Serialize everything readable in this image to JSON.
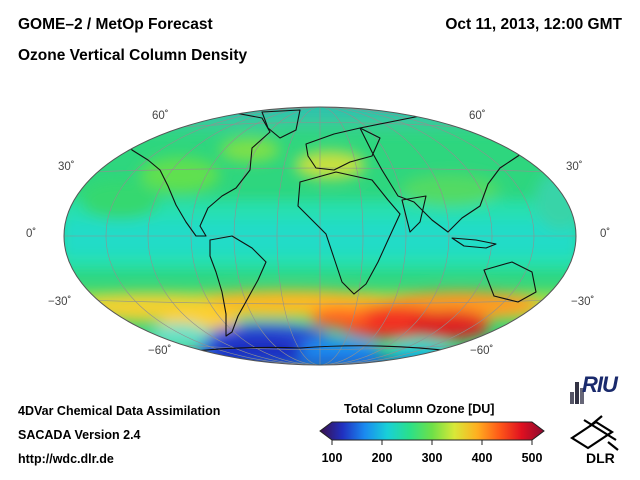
{
  "header": {
    "title_line1": "GOME–2 / MetOp Forecast",
    "title_line2": "Ozone Vertical Column Density",
    "datetime": "Oct 11, 2013, 12:00 GMT"
  },
  "map": {
    "projection": "Hammer-Aitoff",
    "lat_labels_left": [
      "60˚",
      "30˚",
      "0˚",
      "−30˚",
      "−60˚"
    ],
    "lat_labels_right": [
      "60˚",
      "30˚",
      "0˚",
      "−30˚",
      "−60˚"
    ]
  },
  "footer": {
    "line1": "4DVar Chemical Data Assimilation",
    "line2": "SACADA Version 2.4",
    "line3": "http://wdc.dlr.de"
  },
  "colorbar": {
    "title": "Total Column Ozone [DU]",
    "ticks": [
      "100",
      "200",
      "300",
      "400",
      "500"
    ],
    "stops": [
      "#3a0f4a",
      "#2030c0",
      "#1a8af0",
      "#18d0d8",
      "#2ae08a",
      "#6ee048",
      "#d8e838",
      "#ffb020",
      "#ff5a18",
      "#e01020",
      "#8a0a30"
    ]
  },
  "logos": {
    "riu_text": "RIU",
    "dlr_text": "DLR"
  }
}
